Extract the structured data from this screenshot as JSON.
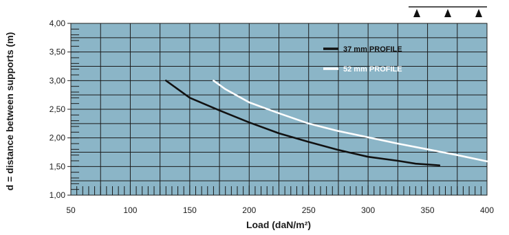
{
  "chart_data": {
    "type": "line",
    "title": "",
    "xlabel": "Load (daN/m²)",
    "ylabel": "d = distance between supports (m)",
    "xlim": [
      50,
      400
    ],
    "ylim": [
      1.0,
      4.0
    ],
    "x_ticks": [
      "50",
      "100",
      "150",
      "200",
      "250",
      "300",
      "350",
      "400"
    ],
    "y_ticks": [
      "1,00",
      "1,50",
      "2,00",
      "2,50",
      "3,00",
      "3,50",
      "4,00"
    ],
    "grid": true,
    "background_color": "#8bb5c7",
    "legend_position": "top-right",
    "series": [
      {
        "name": "37 mm PROFILE",
        "color": "#111111",
        "x": [
          130,
          150,
          175,
          200,
          225,
          250,
          275,
          300,
          325,
          340,
          360
        ],
        "y": [
          3.0,
          2.7,
          2.48,
          2.27,
          2.08,
          1.93,
          1.79,
          1.67,
          1.6,
          1.55,
          1.52
        ]
      },
      {
        "name": "52 mm PROFILE",
        "color": "#ffffff",
        "x": [
          170,
          180,
          200,
          225,
          250,
          275,
          300,
          325,
          350,
          375,
          400
        ],
        "y": [
          3.0,
          2.85,
          2.62,
          2.43,
          2.25,
          2.12,
          2.01,
          1.9,
          1.8,
          1.7,
          1.59
        ]
      }
    ],
    "support_markers_count": 3
  }
}
